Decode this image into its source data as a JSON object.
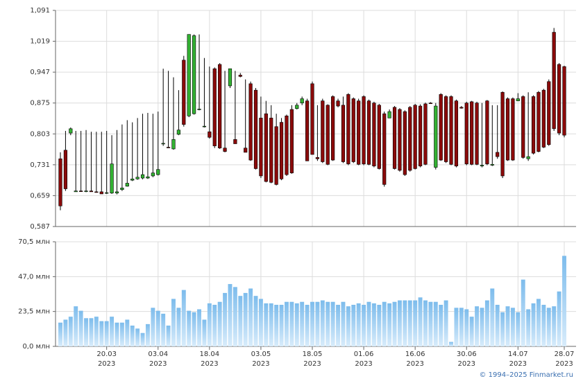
{
  "chart_data": [
    {
      "type": "candlestick",
      "categories": [
        null,
        null,
        null,
        null,
        null,
        null,
        null,
        null,
        null,
        [
          "20.03",
          "2023"
        ],
        null,
        null,
        null,
        null,
        null,
        null,
        null,
        null,
        null,
        [
          "03.04",
          "2023"
        ],
        null,
        null,
        null,
        null,
        null,
        null,
        null,
        null,
        null,
        [
          "18.04",
          "2023"
        ],
        null,
        null,
        null,
        null,
        null,
        null,
        null,
        null,
        null,
        [
          "03.05",
          "2023"
        ],
        null,
        null,
        null,
        null,
        null,
        null,
        null,
        null,
        null,
        [
          "18.05",
          "2023"
        ],
        null,
        null,
        null,
        null,
        null,
        null,
        null,
        null,
        null,
        [
          "01.06",
          "2023"
        ],
        null,
        null,
        null,
        null,
        null,
        null,
        null,
        null,
        null,
        [
          "16.06",
          "2023"
        ],
        null,
        null,
        null,
        null,
        null,
        null,
        null,
        null,
        null,
        [
          "30.06",
          "2023"
        ],
        null,
        null,
        null,
        null,
        null,
        null,
        null,
        null,
        null,
        [
          "14.07",
          "2023"
        ],
        null,
        null,
        null,
        null,
        null,
        null,
        null,
        null,
        [
          "28.07",
          "2023"
        ]
      ],
      "open": [
        0.745,
        0.765,
        0.805,
        0.668,
        0.67,
        0.669,
        0.67,
        0.668,
        0.668,
        0.665,
        0.665,
        0.665,
        0.673,
        0.681,
        0.695,
        0.698,
        0.7,
        0.7,
        0.705,
        0.708,
        0.78,
        0.772,
        0.768,
        0.802,
        0.975,
        0.845,
        0.85,
        0.86,
        0.82,
        0.808,
        0.955,
        0.965,
        0.77,
        0.915,
        0.79,
        0.94,
        0.77,
        0.92,
        0.905,
        0.84,
        0.85,
        0.84,
        0.82,
        0.83,
        0.845,
        0.86,
        0.862,
        0.875,
        0.88,
        0.92,
        0.748,
        0.88,
        0.87,
        0.89,
        0.88,
        0.87,
        0.895,
        0.885,
        0.88,
        0.89,
        0.88,
        0.875,
        0.87,
        0.85,
        0.84,
        0.865,
        0.86,
        0.855,
        0.865,
        0.87,
        0.868,
        0.873,
        0.875,
        0.725,
        0.895,
        0.89,
        0.89,
        0.88,
        0.865,
        0.875,
        0.878,
        0.875,
        0.728,
        0.88,
        0.73,
        0.76,
        0.9,
        0.885,
        0.885,
        0.88,
        0.89,
        0.745,
        0.89,
        0.9,
        0.905,
        0.925,
        1.04,
        0.965,
        0.96
      ],
      "high": [
        0.76,
        0.81,
        0.818,
        0.81,
        0.81,
        0.812,
        0.808,
        0.808,
        0.808,
        0.81,
        0.8,
        0.812,
        0.825,
        0.835,
        0.83,
        0.84,
        0.85,
        0.852,
        0.85,
        0.855,
        0.955,
        0.95,
        0.935,
        0.905,
        0.985,
        1.035,
        1.035,
        1.035,
        0.98,
        0.96,
        0.958,
        0.968,
        0.95,
        0.955,
        0.95,
        0.945,
        0.93,
        0.925,
        0.91,
        0.89,
        0.88,
        0.87,
        0.85,
        0.84,
        0.848,
        0.87,
        0.875,
        0.89,
        0.885,
        0.925,
        0.87,
        0.885,
        0.872,
        0.893,
        0.885,
        0.89,
        0.898,
        0.888,
        0.885,
        0.893,
        0.883,
        0.878,
        0.873,
        0.855,
        0.86,
        0.868,
        0.863,
        0.858,
        0.868,
        0.873,
        0.872,
        0.876,
        0.877,
        0.875,
        0.898,
        0.893,
        0.893,
        0.883,
        0.868,
        0.878,
        0.88,
        0.878,
        0.875,
        0.882,
        0.87,
        0.87,
        0.902,
        0.888,
        0.888,
        0.898,
        0.893,
        0.9,
        0.893,
        0.903,
        0.908,
        0.93,
        1.05,
        0.968,
        0.962
      ],
      "low": [
        0.625,
        0.67,
        0.8,
        0.668,
        0.668,
        0.667,
        0.668,
        0.666,
        0.664,
        0.663,
        0.663,
        0.662,
        0.67,
        0.68,
        0.693,
        0.696,
        0.697,
        0.698,
        0.702,
        0.706,
        0.775,
        0.77,
        0.766,
        0.8,
        0.82,
        0.842,
        0.848,
        0.858,
        0.818,
        0.792,
        0.77,
        0.768,
        0.76,
        0.91,
        0.78,
        0.935,
        0.76,
        0.74,
        0.72,
        0.7,
        0.69,
        0.688,
        0.683,
        0.695,
        0.705,
        0.71,
        0.86,
        0.87,
        0.74,
        0.755,
        0.74,
        0.735,
        0.73,
        0.74,
        0.865,
        0.735,
        0.73,
        0.735,
        0.73,
        0.73,
        0.73,
        0.725,
        0.72,
        0.68,
        0.84,
        0.72,
        0.715,
        0.705,
        0.715,
        0.72,
        0.725,
        0.73,
        0.873,
        0.72,
        0.74,
        0.735,
        0.73,
        0.725,
        0.862,
        0.73,
        0.73,
        0.73,
        0.725,
        0.73,
        0.728,
        0.745,
        0.7,
        0.74,
        0.74,
        0.88,
        0.745,
        0.74,
        0.755,
        0.76,
        0.77,
        0.775,
        0.81,
        0.8,
        0.795
      ],
      "close": [
        0.635,
        0.675,
        0.815,
        0.67,
        0.669,
        0.67,
        0.668,
        0.667,
        0.663,
        0.666,
        0.733,
        0.668,
        0.677,
        0.688,
        0.698,
        0.702,
        0.708,
        0.703,
        0.712,
        0.72,
        0.781,
        0.771,
        0.79,
        0.812,
        0.825,
        1.035,
        1.032,
        0.861,
        0.821,
        0.795,
        0.775,
        0.77,
        0.762,
        0.955,
        0.78,
        0.937,
        0.76,
        0.742,
        0.722,
        0.705,
        0.692,
        0.69,
        0.685,
        0.698,
        0.708,
        0.712,
        0.87,
        0.885,
        0.74,
        0.755,
        0.745,
        0.738,
        0.732,
        0.742,
        0.868,
        0.738,
        0.733,
        0.738,
        0.732,
        0.733,
        0.732,
        0.728,
        0.722,
        0.685,
        0.855,
        0.722,
        0.718,
        0.708,
        0.718,
        0.722,
        0.728,
        0.732,
        0.874,
        0.868,
        0.742,
        0.738,
        0.732,
        0.728,
        0.863,
        0.733,
        0.732,
        0.732,
        0.73,
        0.733,
        0.732,
        0.75,
        0.705,
        0.742,
        0.742,
        0.885,
        0.748,
        0.75,
        0.758,
        0.762,
        0.772,
        0.778,
        0.815,
        0.805,
        0.8
      ],
      "up_color": "#33b233",
      "down_color": "#8b0a0a",
      "ylim": [
        0.587,
        1.091
      ],
      "yticks": [
        {
          "value": 0.587,
          "label": "0,587"
        },
        {
          "value": 0.659,
          "label": "0,659"
        },
        {
          "value": 0.731,
          "label": "0,731"
        },
        {
          "value": 0.803,
          "label": "0,803"
        },
        {
          "value": 0.875,
          "label": "0,875"
        },
        {
          "value": 0.947,
          "label": "0,947"
        },
        {
          "value": 1.019,
          "label": "1,019"
        },
        {
          "value": 1.091,
          "label": "1,091"
        }
      ],
      "grid": true
    },
    {
      "type": "bar",
      "values": [
        16,
        18,
        20,
        27,
        24,
        19,
        19,
        20,
        17,
        17,
        20,
        16,
        16,
        18,
        14,
        12,
        9,
        15,
        26,
        24,
        22,
        14,
        32,
        26,
        38,
        24,
        23,
        25,
        18,
        29,
        28,
        30,
        36,
        42,
        40,
        34,
        36,
        39,
        34,
        32,
        29,
        29,
        28,
        28,
        30,
        30,
        29,
        30,
        28,
        30,
        30,
        31,
        30,
        30,
        28,
        30,
        27,
        28,
        29,
        28,
        30,
        29,
        28,
        30,
        29,
        30,
        31,
        31,
        31,
        31,
        33,
        31,
        30,
        30,
        28,
        31,
        3,
        26,
        26,
        25,
        20,
        27,
        26,
        31,
        39,
        28,
        23,
        27,
        26,
        23,
        45,
        25,
        29,
        32,
        28,
        26,
        27,
        37,
        61
      ],
      "color": "#7dbcec",
      "ylim": [
        0,
        70.5
      ],
      "yticks": [
        {
          "value": 0,
          "label": "0,0 млн"
        },
        {
          "value": 23.5,
          "label": "23,5 млн"
        },
        {
          "value": 47,
          "label": "47,0 млн"
        },
        {
          "value": 70.5,
          "label": "70,5 млн"
        }
      ],
      "grid": true
    }
  ],
  "footer": "© 1994–2025 Finmarket.ru"
}
